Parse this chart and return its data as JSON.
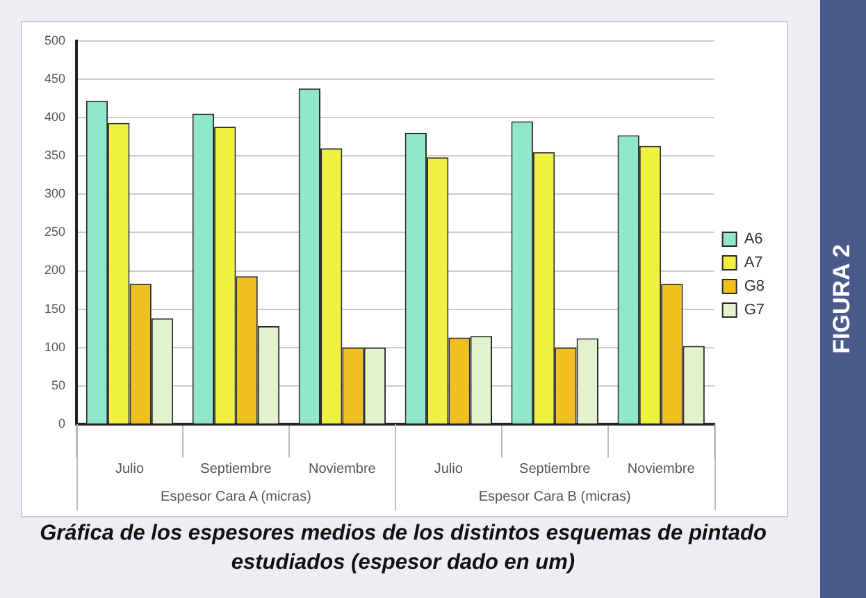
{
  "chart_data": {
    "type": "bar",
    "title": "Gráfica de los espesores medios de los distintos esquemas de pintado estudiados (espesor dado en um)",
    "categories": [
      "Julio",
      "Septiembre",
      "Noviembre",
      "Julio",
      "Septiembre",
      "Noviembre"
    ],
    "series": [
      {
        "name": "A6",
        "color": "#8fe8c8",
        "values": [
          422,
          405,
          438,
          380,
          395,
          377
        ]
      },
      {
        "name": "A7",
        "color": "#f0f040",
        "values": [
          393,
          388,
          360,
          348,
          355,
          363
        ]
      },
      {
        "name": "G8",
        "color": "#f0c020",
        "values": [
          183,
          193,
          100,
          113,
          100,
          183
        ]
      },
      {
        "name": "G7",
        "color": "#e2f2cc",
        "values": [
          138,
          128,
          100,
          115,
          112,
          102
        ]
      }
    ],
    "ylim": [
      0,
      500
    ],
    "yticks": [
      0,
      50,
      100,
      150,
      200,
      250,
      300,
      350,
      400,
      450,
      500
    ],
    "grid": "y",
    "legend": "right",
    "annotations": [
      "Espesor Cara A (micras)",
      "Espesor Cara B (micras)",
      "FIGURA 2"
    ]
  }
}
